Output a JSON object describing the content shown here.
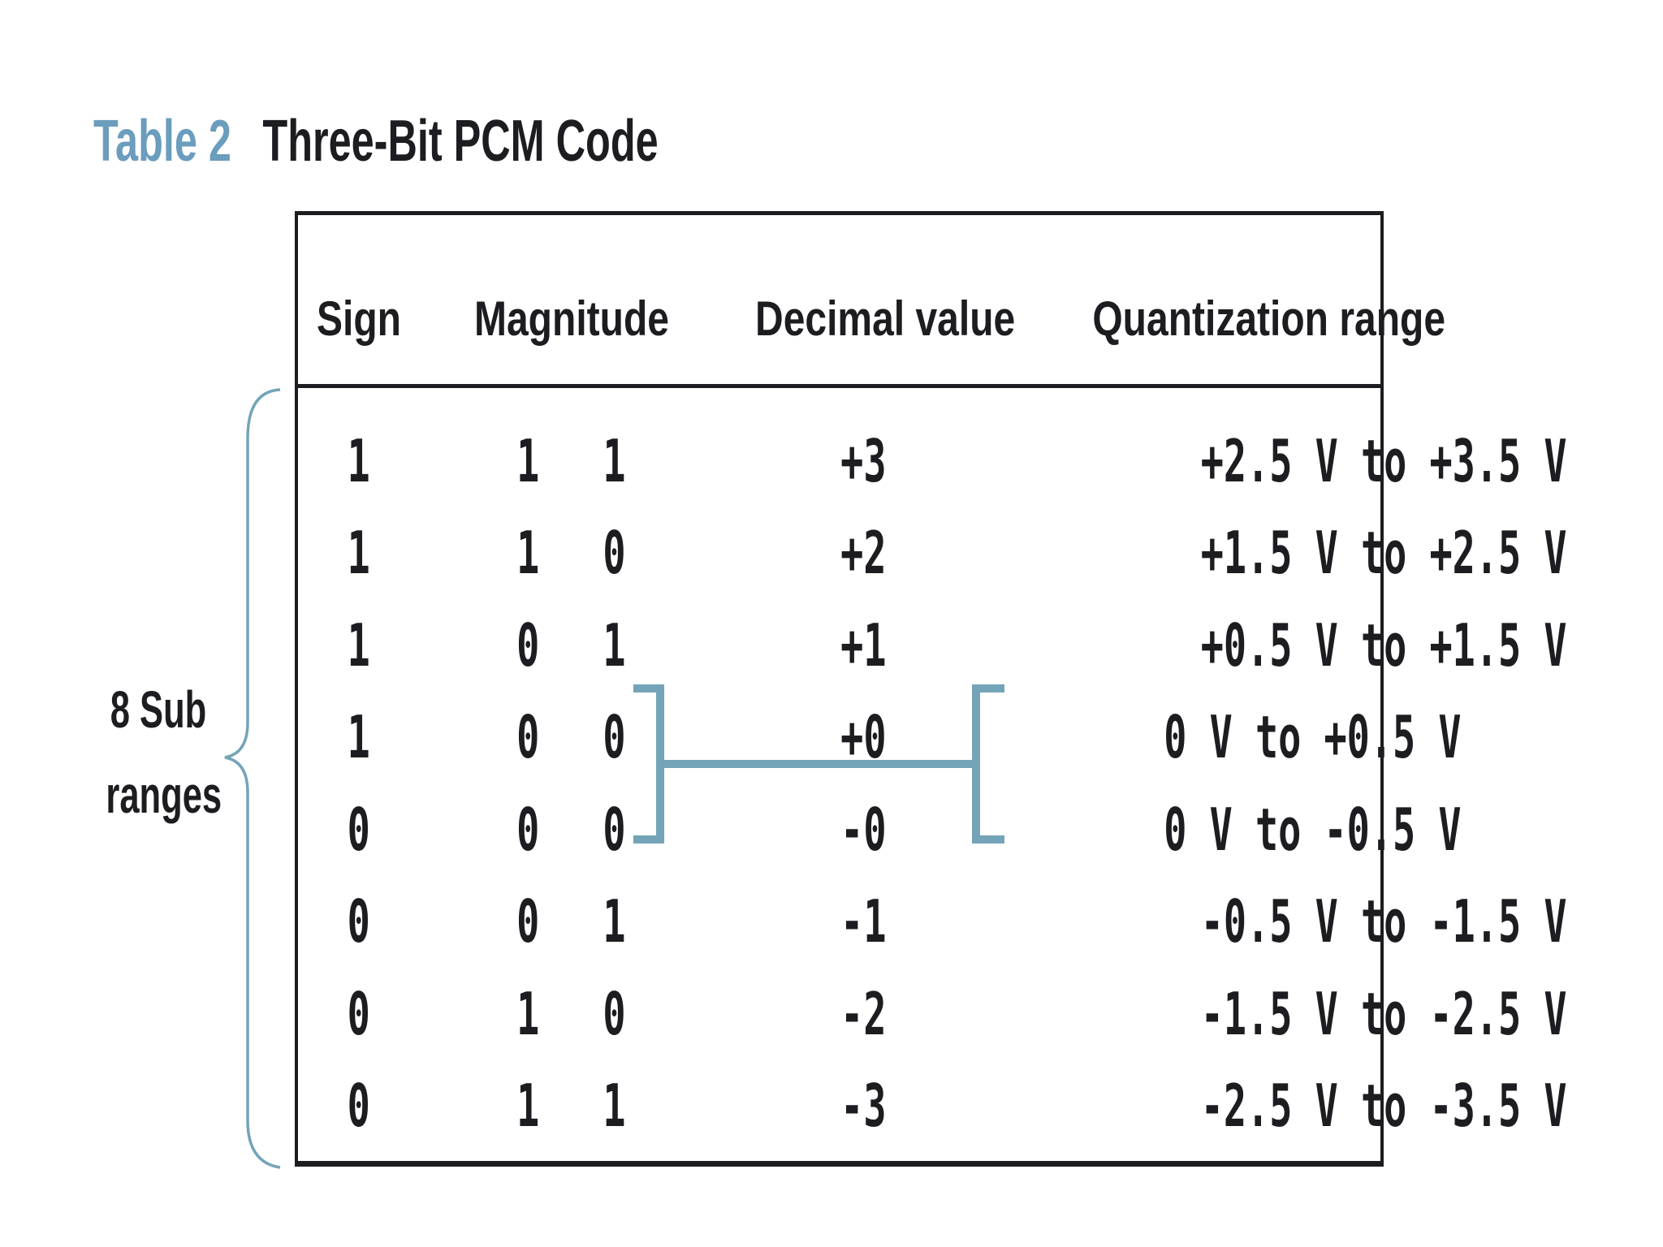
{
  "title": {
    "label": "Table 2",
    "text": "Three-Bit PCM Code"
  },
  "side_label": {
    "line1": "8 Sub",
    "line2": "ranges"
  },
  "colors": {
    "accent_blue": "#74a4b8",
    "title_label_blue": "#6b9dbd",
    "text_ink": "#1d1d21"
  },
  "table": {
    "headers": [
      "Sign",
      "Magnitude",
      "Decimal value",
      "Quantization range"
    ],
    "rows": [
      {
        "sign": "1",
        "mag1": "1",
        "mag2": "1",
        "decimal": "+3",
        "range": "+2.5 V to +3.5 V"
      },
      {
        "sign": "1",
        "mag1": "1",
        "mag2": "0",
        "decimal": "+2",
        "range": "+1.5 V to +2.5 V"
      },
      {
        "sign": "1",
        "mag1": "0",
        "mag2": "1",
        "decimal": "+1",
        "range": "+0.5 V to +1.5 V"
      },
      {
        "sign": "1",
        "mag1": "0",
        "mag2": "0",
        "decimal": "+0",
        "range": "0 V to +0.5 V"
      },
      {
        "sign": "0",
        "mag1": "0",
        "mag2": "0",
        "decimal": "-0",
        "range": "0 V to -0.5 V"
      },
      {
        "sign": "0",
        "mag1": "0",
        "mag2": "1",
        "decimal": "-1",
        "range": "-0.5 V to -1.5 V"
      },
      {
        "sign": "0",
        "mag1": "1",
        "mag2": "0",
        "decimal": "-2",
        "range": "-1.5 V to -2.5 V"
      },
      {
        "sign": "0",
        "mag1": "1",
        "mag2": "1",
        "decimal": "-3",
        "range": "-2.5 V to -3.5 V"
      }
    ]
  }
}
